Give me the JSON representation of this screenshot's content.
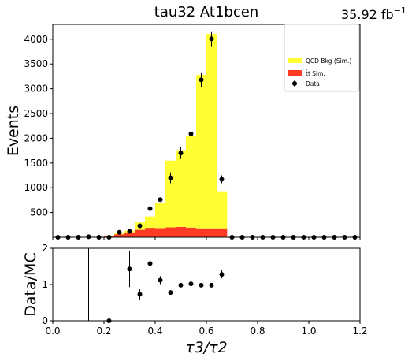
{
  "title": "tau32  At1bcen",
  "lumi": "35.92 fb",
  "lumi_exp": "−1",
  "chart_data": [
    {
      "type": "bar",
      "panel": "main",
      "stacked": true,
      "ylabel": "Events",
      "xlim": [
        0.0,
        1.2
      ],
      "ylim": [
        0,
        4300
      ],
      "yticks": [
        500,
        1000,
        1500,
        2000,
        2500,
        3000,
        3500,
        4000
      ],
      "ytick_labels": [
        "500",
        "1000",
        "1500",
        "2000",
        "2500",
        "3000",
        "3500",
        "4000"
      ],
      "bin_edges": [
        0.0,
        0.04,
        0.08,
        0.12,
        0.16,
        0.2,
        0.24,
        0.28,
        0.32,
        0.36,
        0.4,
        0.44,
        0.48,
        0.52,
        0.56,
        0.6,
        0.64,
        0.68,
        0.72,
        0.76,
        0.8,
        0.84,
        0.88,
        0.92,
        0.96,
        1.0,
        1.04,
        1.08,
        1.12,
        1.16,
        1.2
      ],
      "series": [
        {
          "name": "t̄t Sim.",
          "color": "#ff3b24",
          "values": [
            0,
            0,
            0,
            0,
            0,
            30,
            60,
            100,
            150,
            190,
            185,
            200,
            210,
            195,
            180,
            180,
            180,
            0,
            0,
            0,
            0,
            0,
            0,
            0,
            0,
            0,
            0,
            0,
            0,
            0
          ]
        },
        {
          "name": "QCD Bkg (Sim.)",
          "color": "#ffff33",
          "values": [
            0,
            0,
            0,
            0,
            0,
            0,
            20,
            30,
            150,
            230,
            510,
            1350,
            1550,
            1850,
            3100,
            3930,
            750,
            0,
            0,
            0,
            0,
            0,
            0,
            0,
            0,
            0,
            0,
            0,
            0,
            0
          ]
        }
      ],
      "data_points": {
        "name": "Data",
        "x": [
          0.02,
          0.06,
          0.1,
          0.14,
          0.18,
          0.22,
          0.26,
          0.3,
          0.34,
          0.38,
          0.42,
          0.46,
          0.5,
          0.54,
          0.58,
          0.62,
          0.66,
          0.7,
          0.74,
          0.78,
          0.82,
          0.86,
          0.9,
          0.94,
          0.98,
          1.02,
          1.06,
          1.1,
          1.14,
          1.18
        ],
        "y": [
          0,
          0,
          0,
          10,
          0,
          0,
          100,
          120,
          230,
          580,
          760,
          1200,
          1700,
          2090,
          3180,
          4010,
          1170,
          0,
          0,
          0,
          0,
          0,
          0,
          0,
          0,
          0,
          0,
          0,
          0,
          0
        ],
        "yerr": [
          0,
          0,
          0,
          3,
          0,
          0,
          10,
          11,
          15,
          24,
          28,
          110,
          120,
          130,
          140,
          150,
          80,
          0,
          0,
          0,
          0,
          0,
          0,
          0,
          0,
          0,
          0,
          0,
          0,
          0
        ]
      },
      "legend_placement": "top-right"
    },
    {
      "type": "scatter",
      "panel": "ratio",
      "xlabel": "τ3/τ2",
      "ylabel": "Data/MC",
      "xlim": [
        0.0,
        1.2
      ],
      "ylim": [
        0,
        2
      ],
      "xticks": [
        0.0,
        0.2,
        0.4,
        0.6,
        0.8,
        1.0,
        1.2
      ],
      "xtick_labels": [
        "0.0",
        "0.2",
        "0.4",
        "0.6",
        "0.8",
        "1.0",
        "1.2"
      ],
      "yticks": [
        0,
        1,
        2
      ],
      "ytick_labels": [
        "0",
        "1",
        "2"
      ],
      "x": [
        0.14,
        0.22,
        0.3,
        0.34,
        0.38,
        0.42,
        0.46,
        0.5,
        0.54,
        0.58,
        0.62,
        0.66
      ],
      "y": [
        0.0,
        0.0,
        1.43,
        0.73,
        1.58,
        1.12,
        0.78,
        0.98,
        1.02,
        0.98,
        0.98,
        1.28
      ],
      "yerr": [
        5.0,
        0.0,
        0.5,
        0.14,
        0.16,
        0.11,
        0.05,
        0.05,
        0.05,
        0.04,
        0.04,
        0.11
      ]
    }
  ]
}
